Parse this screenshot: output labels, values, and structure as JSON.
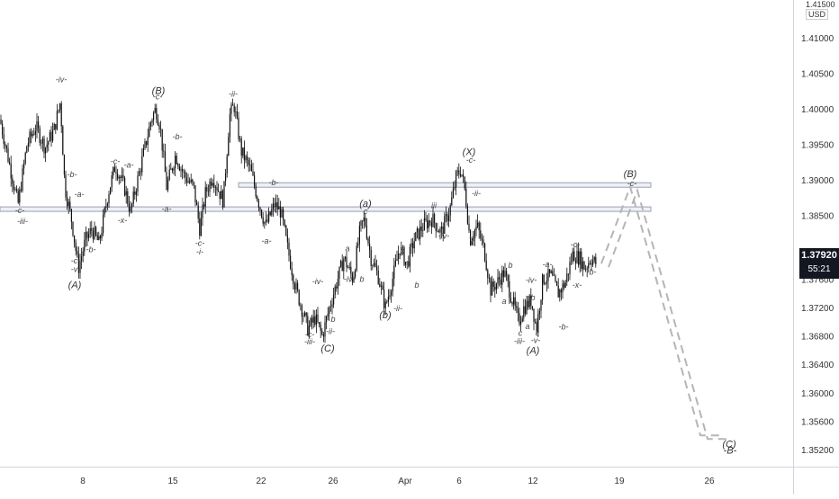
{
  "chart_data": {
    "type": "candlestick",
    "currency": "USD",
    "top_price_label": "1.41500",
    "y_ticks": [
      "1.41000",
      "1.40500",
      "1.40000",
      "1.39500",
      "1.39000",
      "1.38500",
      "1.37600",
      "1.37200",
      "1.36800",
      "1.36400",
      "1.36000",
      "1.35600",
      "1.35200"
    ],
    "x_ticks": [
      "8",
      "15",
      "22",
      "26",
      "Apr",
      "6",
      "12",
      "19",
      "26"
    ],
    "current_price": "1.37920",
    "countdown": "55:21",
    "horizontal_levels": [
      1.3892,
      1.3858
    ],
    "price_path": [
      [
        0,
        1.3985
      ],
      [
        10,
        1.3925
      ],
      [
        20,
        1.3865
      ],
      [
        30,
        1.395
      ],
      [
        40,
        1.3975
      ],
      [
        50,
        1.3945
      ],
      [
        60,
        1.397
      ],
      [
        67,
        1.401
      ],
      [
        72,
        1.389
      ],
      [
        80,
        1.384
      ],
      [
        87,
        1.3775
      ],
      [
        95,
        1.3815
      ],
      [
        102,
        1.383
      ],
      [
        110,
        1.381
      ],
      [
        120,
        1.388
      ],
      [
        128,
        1.392
      ],
      [
        138,
        1.389
      ],
      [
        145,
        1.3855
      ],
      [
        152,
        1.3895
      ],
      [
        160,
        1.394
      ],
      [
        168,
        1.3985
      ],
      [
        173,
        1.4
      ],
      [
        178,
        1.3975
      ],
      [
        185,
        1.389
      ],
      [
        195,
        1.3935
      ],
      [
        205,
        1.3905
      ],
      [
        215,
        1.389
      ],
      [
        222,
        1.383
      ],
      [
        228,
        1.388
      ],
      [
        236,
        1.3905
      ],
      [
        248,
        1.387
      ],
      [
        255,
        1.399
      ],
      [
        260,
        1.4005
      ],
      [
        268,
        1.394
      ],
      [
        278,
        1.3915
      ],
      [
        287,
        1.387
      ],
      [
        295,
        1.3835
      ],
      [
        305,
        1.3865
      ],
      [
        312,
        1.3855
      ],
      [
        320,
        1.38
      ],
      [
        328,
        1.375
      ],
      [
        335,
        1.372
      ],
      [
        342,
        1.369
      ],
      [
        350,
        1.3705
      ],
      [
        358,
        1.368
      ],
      [
        366,
        1.372
      ],
      [
        374,
        1.3755
      ],
      [
        382,
        1.379
      ],
      [
        392,
        1.376
      ],
      [
        400,
        1.383
      ],
      [
        405,
        1.3845
      ],
      [
        412,
        1.379
      ],
      [
        420,
        1.3765
      ],
      [
        428,
        1.372
      ],
      [
        436,
        1.376
      ],
      [
        444,
        1.3805
      ],
      [
        452,
        1.378
      ],
      [
        460,
        1.3815
      ],
      [
        470,
        1.3835
      ],
      [
        480,
        1.3845
      ],
      [
        490,
        1.3825
      ],
      [
        500,
        1.386
      ],
      [
        507,
        1.3905
      ],
      [
        512,
        1.3915
      ],
      [
        517,
        1.388
      ],
      [
        522,
        1.3815
      ],
      [
        530,
        1.3835
      ],
      [
        538,
        1.38
      ],
      [
        545,
        1.3745
      ],
      [
        552,
        1.3755
      ],
      [
        560,
        1.377
      ],
      [
        568,
        1.3735
      ],
      [
        576,
        1.37
      ],
      [
        582,
        1.372
      ],
      [
        590,
        1.373
      ],
      [
        596,
        1.369
      ],
      [
        603,
        1.376
      ],
      [
        612,
        1.3765
      ],
      [
        620,
        1.374
      ],
      [
        628,
        1.3755
      ],
      [
        636,
        1.3795
      ],
      [
        644,
        1.379
      ],
      [
        650,
        1.3775
      ],
      [
        656,
        1.379
      ],
      [
        662,
        1.3782
      ]
    ],
    "projection": [
      [
        668,
        1.3782
      ],
      [
        700,
        1.389
      ],
      [
        778,
        1.354
      ],
      [
        800,
        1.354
      ]
    ],
    "wave_labels": [
      {
        "t": "-c-",
        "x": 22,
        "p": 1.3853
      },
      {
        "t": "-iii-",
        "x": 25,
        "p": 1.3838
      },
      {
        "t": "-iv-",
        "x": 68,
        "p": 1.4037
      },
      {
        "t": "-b-",
        "x": 80,
        "p": 1.3904
      },
      {
        "t": "-a-",
        "x": 88,
        "p": 1.3876
      },
      {
        "t": "-c-",
        "x": 84,
        "p": 1.3782
      },
      {
        "t": "-v-",
        "x": 84,
        "p": 1.377
      },
      {
        "t": "-b-",
        "x": 101,
        "p": 1.3798
      },
      {
        "t": "-x-",
        "x": 136,
        "p": 1.3839
      },
      {
        "t": "-c-",
        "x": 128,
        "p": 1.3922
      },
      {
        "t": "-a-",
        "x": 143,
        "p": 1.3917
      },
      {
        "t": "-b-",
        "x": 197,
        "p": 1.3957
      },
      {
        "t": "-c-",
        "x": 175,
        "p": 1.4013
      },
      {
        "t": "-a-",
        "x": 185,
        "p": 1.3855
      },
      {
        "t": "-c-",
        "x": 222,
        "p": 1.3807
      },
      {
        "t": "-i-",
        "x": 222,
        "p": 1.3795
      },
      {
        "t": "-ii-",
        "x": 259,
        "p": 1.4017
      },
      {
        "t": "-a-",
        "x": 296,
        "p": 1.381
      },
      {
        "t": "-b-",
        "x": 304,
        "p": 1.3892
      },
      {
        "t": "-iv-",
        "x": 353,
        "p": 1.3753
      },
      {
        "t": "-iv-",
        "x": 388,
        "p": 1.3756
      },
      {
        "t": "b",
        "x": 402,
        "p": 1.3756
      },
      {
        "t": "-c-",
        "x": 344,
        "p": 1.3678
      },
      {
        "t": "-iii-",
        "x": 344,
        "p": 1.3668
      },
      {
        "t": "-ii-",
        "x": 367,
        "p": 1.3683
      },
      {
        "t": "b",
        "x": 370,
        "p": 1.37
      },
      {
        "t": "c",
        "x": 406,
        "p": 1.3852
      },
      {
        "t": "a",
        "x": 386,
        "p": 1.3799
      },
      {
        "t": "-ii-",
        "x": 442,
        "p": 1.3715
      },
      {
        "t": "c",
        "x": 447,
        "p": 1.3796
      },
      {
        "t": "b",
        "x": 463,
        "p": 1.3748
      },
      {
        "t": "iii",
        "x": 482,
        "p": 1.386
      },
      {
        "t": "-iv-",
        "x": 493,
        "p": 1.3817
      },
      {
        "t": "-c-",
        "x": 523,
        "p": 1.3924
      },
      {
        "t": "-ii-",
        "x": 529,
        "p": 1.3877
      },
      {
        "t": "-i-",
        "x": 525,
        "p": 1.3815
      },
      {
        "t": "b",
        "x": 567,
        "p": 1.3776
      },
      {
        "t": "a",
        "x": 560,
        "p": 1.3725
      },
      {
        "t": "-iv-",
        "x": 590,
        "p": 1.3755
      },
      {
        "t": "b",
        "x": 592,
        "p": 1.373
      },
      {
        "t": "a",
        "x": 586,
        "p": 1.369
      },
      {
        "t": "c",
        "x": 578,
        "p": 1.368
      },
      {
        "t": "-iii-",
        "x": 577,
        "p": 1.3669
      },
      {
        "t": "c",
        "x": 597,
        "p": 1.368
      },
      {
        "t": "-v-",
        "x": 595,
        "p": 1.367
      },
      {
        "t": "-a-",
        "x": 608,
        "p": 1.3777
      },
      {
        "t": "-b-",
        "x": 626,
        "p": 1.3689
      },
      {
        "t": "-x-",
        "x": 641,
        "p": 1.3748
      },
      {
        "t": "-c-",
        "x": 639,
        "p": 1.3805
      },
      {
        "t": "-b-",
        "x": 657,
        "p": 1.3766
      },
      {
        "t": "-c-",
        "x": 702,
        "p": 1.3891
      }
    ],
    "major_labels": [
      {
        "t": "(A)",
        "x": 83,
        "p": 1.3747
      },
      {
        "t": "(B)",
        "x": 176,
        "p": 1.4021
      },
      {
        "t": "(C)",
        "x": 364,
        "p": 1.3658
      },
      {
        "t": "(a)",
        "x": 406,
        "p": 1.3862
      },
      {
        "t": "(b)",
        "x": 428,
        "p": 1.3705
      },
      {
        "t": "(X)",
        "x": 521,
        "p": 1.3935
      },
      {
        "t": "(A)",
        "x": 592,
        "p": 1.3655
      },
      {
        "t": "(B)",
        "x": 700,
        "p": 1.3904
      },
      {
        "t": "(C)",
        "x": 810,
        "p": 1.3523
      },
      {
        "t": "-B-",
        "x": 811,
        "p": 1.3514
      }
    ]
  }
}
